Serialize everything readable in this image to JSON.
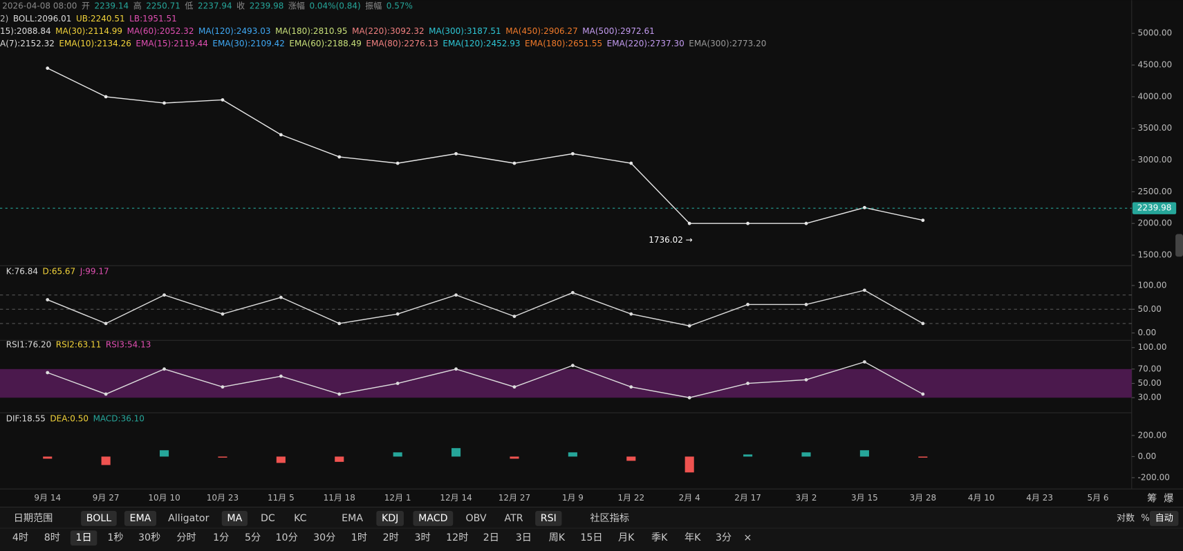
{
  "info": [
    {
      "text": "2026-04-08 08:00",
      "color": "#8a8a8a"
    },
    {
      "text": "开",
      "color": "#8a8a8a"
    },
    {
      "text": "2239.14",
      "color": "#26a69a"
    },
    {
      "text": "高",
      "color": "#8a8a8a"
    },
    {
      "text": "2250.71",
      "color": "#26a69a"
    },
    {
      "text": "低",
      "color": "#8a8a8a"
    },
    {
      "text": "2237.94",
      "color": "#26a69a"
    },
    {
      "text": "收",
      "color": "#8a8a8a"
    },
    {
      "text": "2239.98",
      "color": "#26a69a"
    },
    {
      "text": "涨幅",
      "color": "#8a8a8a"
    },
    {
      "text": "0.04%(0.84)",
      "color": "#26a69a"
    },
    {
      "text": "振幅",
      "color": "#8a8a8a"
    },
    {
      "text": "0.57%",
      "color": "#26a69a"
    }
  ],
  "legend_rows": [
    [
      {
        "text": "2)",
        "color": "#bbbbbb"
      },
      {
        "text": "BOLL:2096.01",
        "color": "#dddddd"
      },
      {
        "text": "UB:2240.51",
        "color": "#f2d33a"
      },
      {
        "text": "LB:1951.51",
        "color": "#e04fb2"
      }
    ],
    [
      {
        "text": "15):2088.84",
        "color": "#dddddd"
      },
      {
        "text": "MA(30):2114.99",
        "color": "#f2d33a"
      },
      {
        "text": "MA(60):2052.32",
        "color": "#e04fb2"
      },
      {
        "text": "MA(120):2493.03",
        "color": "#3fa9f5"
      },
      {
        "text": "MA(180):2810.95",
        "color": "#c8e07a"
      },
      {
        "text": "MA(220):3092.32",
        "color": "#f08080"
      },
      {
        "text": "MA(300):3187.51",
        "color": "#2ec7d6"
      },
      {
        "text": "MA(450):2906.27",
        "color": "#f07a2a"
      },
      {
        "text": "MA(500):2972.61",
        "color": "#c39bf0"
      }
    ],
    [
      {
        "text": "A(7):2152.32",
        "color": "#dddddd"
      },
      {
        "text": "EMA(10):2134.26",
        "color": "#f2d33a"
      },
      {
        "text": "EMA(15):2119.44",
        "color": "#e04fb2"
      },
      {
        "text": "EMA(30):2109.42",
        "color": "#3fa9f5"
      },
      {
        "text": "EMA(60):2188.49",
        "color": "#c8e07a"
      },
      {
        "text": "EMA(80):2276.13",
        "color": "#f08080"
      },
      {
        "text": "EMA(120):2452.93",
        "color": "#2ec7d6"
      },
      {
        "text": "EMA(180):2651.55",
        "color": "#f07a2a"
      },
      {
        "text": "EMA(220):2737.30",
        "color": "#c39bf0"
      },
      {
        "text": "EMA(300):2773.20",
        "color": "#999999"
      }
    ]
  ],
  "chart_data": [
    {
      "type": "line",
      "name": "price",
      "categories": [
        "9月 14",
        "9月 27",
        "10月 10",
        "10月 23",
        "11月 5",
        "11月 18",
        "12月 1",
        "12月 14",
        "12月 27",
        "1月 9",
        "1月 22",
        "2月 4",
        "2月 17",
        "3月 2",
        "3月 15",
        "3月 28",
        "4月 10",
        "4月 23",
        "5月 6"
      ],
      "series": [
        {
          "name": "收",
          "color": "#e8e8e8",
          "values": [
            4450,
            4000,
            3900,
            3950,
            3400,
            3050,
            2950,
            3100,
            2950,
            3100,
            2950,
            2000,
            2000,
            2000,
            2250,
            2050,
            null,
            null,
            null
          ]
        }
      ],
      "ylim": [
        1357,
        5405
      ],
      "yticks": [
        {
          "value": 1500,
          "label": "1500.00"
        },
        {
          "value": 2000,
          "label": "2000.00"
        },
        {
          "value": 2500,
          "label": "2500.00"
        },
        {
          "value": 3000,
          "label": "3000.00"
        },
        {
          "value": 3500,
          "label": "3500.00"
        },
        {
          "value": 4000,
          "label": "4000.00"
        },
        {
          "value": 4500,
          "label": "4500.00"
        },
        {
          "value": 5000,
          "label": "5000.00"
        }
      ],
      "annotations": [
        {
          "text": "1736.02 →",
          "value": 1736.02
        }
      ]
    },
    {
      "type": "line",
      "name": "kdj",
      "legend": [
        {
          "text": "K:76.84",
          "color": "#dddddd"
        },
        {
          "text": "D:65.67",
          "color": "#f2d33a"
        },
        {
          "text": "J:99.17",
          "color": "#e04fb2"
        }
      ],
      "series": [
        {
          "name": "K",
          "color": "#dddddd",
          "values": [
            70,
            20,
            80,
            40,
            75,
            20,
            40,
            80,
            35,
            85,
            40,
            15,
            60,
            60,
            90,
            20,
            null,
            null,
            null
          ]
        }
      ],
      "ylim": [
        -14,
        137
      ],
      "yticks": [
        {
          "value": 0,
          "label": "0.00"
        },
        {
          "value": 50,
          "label": "50.00"
        },
        {
          "value": 100,
          "label": "100.00"
        }
      ],
      "ref_lines": [
        20,
        50,
        80
      ]
    },
    {
      "type": "line",
      "name": "rsi",
      "legend": [
        {
          "text": "RSI1:76.20",
          "color": "#dddddd"
        },
        {
          "text": "RSI2:63.11",
          "color": "#f2d33a"
        },
        {
          "text": "RSI3:54.13",
          "color": "#e04fb2"
        }
      ],
      "series": [
        {
          "name": "RSI1",
          "color": "#dddddd",
          "values": [
            65,
            35,
            70,
            45,
            60,
            35,
            50,
            70,
            45,
            75,
            45,
            30,
            50,
            55,
            80,
            35,
            null,
            null,
            null
          ]
        }
      ],
      "ylim": [
        11,
        109
      ],
      "yticks": [
        {
          "value": 30,
          "label": "30.00"
        },
        {
          "value": 50,
          "label": "50.00"
        },
        {
          "value": 70,
          "label": "70.00"
        },
        {
          "value": 100,
          "label": "100.00"
        }
      ],
      "band": [
        30,
        70
      ],
      "band_color": "#5a1c5c"
    },
    {
      "type": "bar",
      "name": "macd",
      "legend": [
        {
          "text": "DIF:18.55",
          "color": "#dddddd"
        },
        {
          "text": "DEA:0.50",
          "color": "#f2d33a"
        },
        {
          "text": "MACD:36.10",
          "color": "#26a69a"
        }
      ],
      "series": [
        {
          "name": "MACD",
          "values": [
            -20,
            -80,
            60,
            -10,
            -60,
            -50,
            40,
            80,
            -20,
            40,
            -40,
            -150,
            20,
            40,
            60,
            -10,
            null,
            null,
            null
          ]
        }
      ],
      "up_color": "#26a69a",
      "down_color": "#ef5350",
      "ylim": [
        -307,
        393
      ],
      "yticks": [
        {
          "value": -200,
          "label": "-200.00"
        },
        {
          "value": 0,
          "label": "0.00"
        },
        {
          "value": 200,
          "label": "200.00"
        }
      ]
    }
  ],
  "corner": [
    "筹",
    "爆"
  ],
  "toolbar": {
    "indicators": [
      {
        "text": "日期范围",
        "active": false
      },
      {
        "text": "BOLL",
        "active": true
      },
      {
        "text": "EMA",
        "active": true
      },
      {
        "text": "Alligator",
        "active": false
      },
      {
        "text": "MA",
        "active": true
      },
      {
        "text": "DC",
        "active": false
      },
      {
        "text": "KC",
        "active": false
      },
      {
        "text": "EMA",
        "active": false
      },
      {
        "text": "KDJ",
        "active": true
      },
      {
        "text": "MACD",
        "active": true
      },
      {
        "text": "OBV",
        "active": false
      },
      {
        "text": "ATR",
        "active": false
      },
      {
        "text": "RSI",
        "active": true
      },
      {
        "text": "社区指标",
        "active": false
      }
    ],
    "options": [
      {
        "text": "对数",
        "active": false
      },
      {
        "text": "%",
        "active": false
      },
      {
        "text": "自动",
        "active": true
      }
    ],
    "intervals": [
      {
        "text": "4时",
        "active": false
      },
      {
        "text": "8时",
        "active": false
      },
      {
        "text": "1日",
        "active": true
      },
      {
        "text": "1秒",
        "active": false
      },
      {
        "text": "30秒",
        "active": false
      },
      {
        "text": "分时",
        "active": false
      },
      {
        "text": "1分",
        "active": false
      },
      {
        "text": "5分",
        "active": false
      },
      {
        "text": "10分",
        "active": false
      },
      {
        "text": "30分",
        "active": false
      },
      {
        "text": "1时",
        "active": false
      },
      {
        "text": "2时",
        "active": false
      },
      {
        "text": "3时",
        "active": false
      },
      {
        "text": "12时",
        "active": false
      },
      {
        "text": "2日",
        "active": false
      },
      {
        "text": "3日",
        "active": false
      },
      {
        "text": "周K",
        "active": false
      },
      {
        "text": "15日",
        "active": false
      },
      {
        "text": "月K",
        "active": false
      },
      {
        "text": "季K",
        "active": false
      },
      {
        "text": "年K",
        "active": false
      },
      {
        "text": "3分",
        "active": false
      },
      {
        "text": "×",
        "active": false
      }
    ]
  }
}
